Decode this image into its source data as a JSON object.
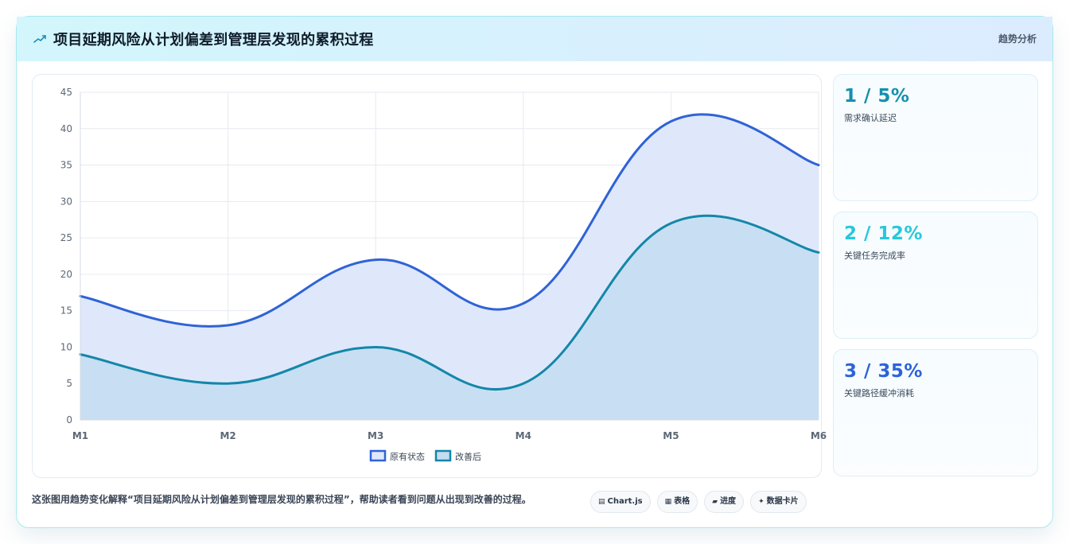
{
  "header": {
    "title": "项目延期风险从计划偏差到管理层发现的累积过程",
    "tag": "趋势分析",
    "icon": "trend-line-icon"
  },
  "chart_data": {
    "type": "area",
    "categories": [
      "M1",
      "M2",
      "M3",
      "M4",
      "M5",
      "M6"
    ],
    "series": [
      {
        "name": "原有状态",
        "values": [
          17,
          13,
          22,
          16,
          41,
          35
        ],
        "color": "#2f63d6",
        "fill": "#dfe8fb"
      },
      {
        "name": "改善后",
        "values": [
          9,
          5,
          10,
          5,
          27,
          23
        ],
        "color": "#1387a8",
        "fill": "#c5ddf2"
      }
    ],
    "ylim": [
      0,
      45
    ],
    "yticks": [
      0,
      5,
      10,
      15,
      20,
      25,
      30,
      35,
      40,
      45
    ],
    "grid": true,
    "legend_position": "bottom"
  },
  "stats": [
    {
      "value": "1 / 5%",
      "label": "需求确认延迟",
      "color": "#1590ad"
    },
    {
      "value": "2 / 12%",
      "label": "关键任务完成率",
      "color": "#27c8dc"
    },
    {
      "value": "3 / 35%",
      "label": "关键路径缓冲消耗",
      "color": "#2d63d8"
    }
  ],
  "caption": "这张图用趋势变化解释“项目延期风险从计划偏差到管理层发现的累积过程”，帮助读者看到问题从出现到改善的过程。",
  "chips": [
    {
      "icon": "chart-icon",
      "glyph": "▤",
      "label": "Chart.js"
    },
    {
      "icon": "table-icon",
      "glyph": "▦",
      "label": "表格"
    },
    {
      "icon": "progress-icon",
      "glyph": "▰",
      "label": "进度"
    },
    {
      "icon": "sparkle-icon",
      "glyph": "✦",
      "label": "数据卡片"
    }
  ]
}
